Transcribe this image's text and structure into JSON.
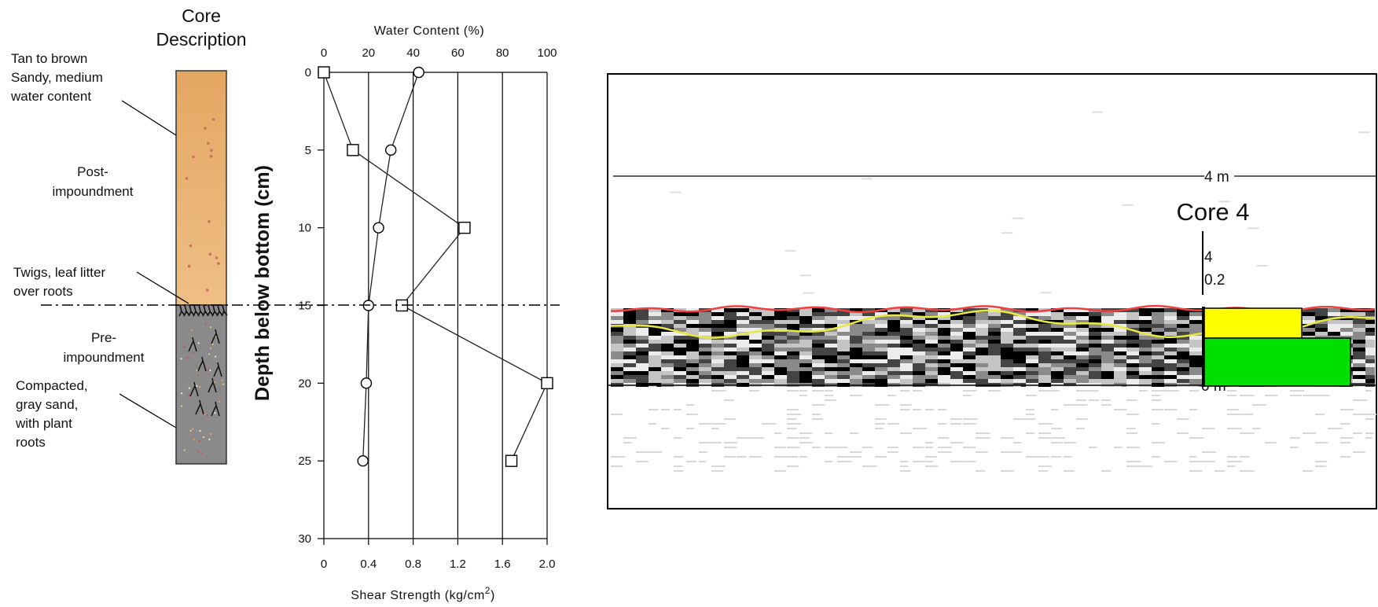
{
  "core_description": {
    "title_line1": "Core",
    "title_line2": "Description",
    "top_annotation": [
      "Tan to brown",
      "Sandy, medium",
      "water content"
    ],
    "post_label": [
      "Post-",
      "impoundment"
    ],
    "twigs_annotation": [
      "Twigs, leaf litter",
      "over roots"
    ],
    "pre_label": [
      "Pre-",
      "impoundment"
    ],
    "bottom_annotation": [
      "Compacted,",
      "gray sand,",
      "with plant",
      "roots"
    ],
    "colors": {
      "upper": "#e6b071",
      "lower": "#8a8a8a"
    }
  },
  "profile": {
    "ylabel": "Depth below bottom (cm)",
    "top_title": "Water Content (%)",
    "bottom_title": "Shear Strength (kg/cm",
    "bottom_title_sup": "2",
    "bottom_title_end": ")",
    "top_ticks": [
      "0",
      "20",
      "40",
      "60",
      "80",
      "100"
    ],
    "bottom_ticks": [
      "0",
      "0.4",
      "0.8",
      "1.2",
      "1.6",
      "2.0"
    ],
    "y_ticks": [
      "0",
      "5",
      "10",
      "15",
      "20",
      "25",
      "30"
    ]
  },
  "chart_data": {
    "type": "line",
    "ylabel": "Depth below bottom (cm)",
    "ylim": [
      30,
      0
    ],
    "x_top": {
      "label": "Water Content (%)",
      "range": [
        0,
        100
      ]
    },
    "x_bottom": {
      "label": "Shear Strength (kg/cm2)",
      "range": [
        0,
        2.0
      ]
    },
    "boundary_depth": 15,
    "series": [
      {
        "marker": "square",
        "axis": "top",
        "points": [
          [
            0,
            0
          ],
          [
            13,
            5
          ],
          [
            63,
            10
          ],
          [
            35,
            15
          ],
          [
            100,
            20
          ],
          [
            84,
            25
          ]
        ]
      },
      {
        "marker": "circle",
        "axis": "bottom",
        "points": [
          [
            0.85,
            0
          ],
          [
            0.6,
            5
          ],
          [
            0.49,
            10
          ],
          [
            0.4,
            15
          ],
          [
            0.38,
            20
          ],
          [
            0.35,
            25
          ]
        ]
      }
    ]
  },
  "gpr": {
    "scale_4m": "4 m",
    "core_title": "Core 4",
    "core_label_top": "4",
    "core_label_scale": "0.2",
    "bottom_marker": "0 m",
    "colors": {
      "red_line": "#f04040",
      "yellow_line": "#e8e840",
      "yellow_box": "#ffff00",
      "green_box": "#00e000"
    }
  }
}
